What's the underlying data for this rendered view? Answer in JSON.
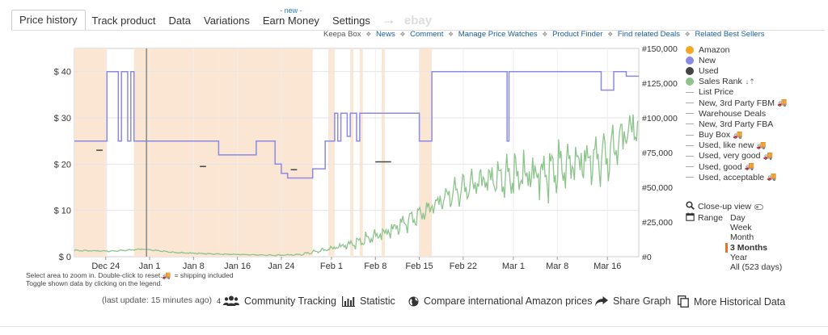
{
  "tabs": [
    {
      "label": "Price history",
      "active": true
    },
    {
      "label": "Track product"
    },
    {
      "label": "Data"
    },
    {
      "label": "Variations"
    },
    {
      "label": "Earn Money",
      "badge": "- new -"
    },
    {
      "label": "Settings"
    }
  ],
  "tab_arrow": "→",
  "tab_ebay": "ebay",
  "links": {
    "lead": "Keepa Box",
    "items": [
      "News",
      "Comment",
      "Manage Price Watches",
      "Product Finder",
      "Find related Deals",
      "Related Best Sellers"
    ],
    "separator": "❖"
  },
  "legend": {
    "items": [
      {
        "label": "Amazon",
        "color": "#f5a623",
        "type": "dot"
      },
      {
        "label": "New",
        "color": "#8a8ae6",
        "type": "dot"
      },
      {
        "label": "Used",
        "color": "#444444",
        "type": "dot"
      },
      {
        "label": "Sales Rank",
        "color": "#8cc48c",
        "type": "dot",
        "sort_icon": "↓⇡"
      },
      {
        "label": "List Price",
        "type": "line"
      },
      {
        "label": "New, 3rd Party FBM",
        "type": "line",
        "truck": true
      },
      {
        "label": "Warehouse Deals",
        "type": "line"
      },
      {
        "label": "New, 3rd Party FBA",
        "type": "line"
      },
      {
        "label": "Buy Box",
        "type": "line",
        "truck": true
      },
      {
        "label": "Used, like new",
        "type": "line",
        "truck": true
      },
      {
        "label": "Used, very good",
        "type": "line",
        "truck": true
      },
      {
        "label": "Used, good",
        "type": "line",
        "truck": true
      },
      {
        "label": "Used, acceptable",
        "type": "line",
        "truck": true
      }
    ],
    "truck_icon": "🚚"
  },
  "closeup": {
    "label": "Close-up view"
  },
  "range": {
    "label": "Range",
    "options": [
      "Day",
      "Week",
      "Month",
      "3 Months",
      "Year",
      "All (523 days)"
    ],
    "selected": "3 Months"
  },
  "help": {
    "line1": "Select area to zoom in. Double-click to reset.",
    "line2": "Toggle shown data by clicking on the legend.",
    "shipping": "= shipping included"
  },
  "bottom": {
    "last_update": "(last update: 15 minutes ago)",
    "community_count": "4",
    "community": "Community Tracking",
    "statistic": "Statistic",
    "compare": "Compare international Amazon prices",
    "share": "Share Graph",
    "more": "More Historical Data"
  },
  "chart_data": {
    "type": "line",
    "x_ticks": [
      "Dec 24",
      "Jan 1",
      "Jan 8",
      "Jan 16",
      "Jan 24",
      "Feb 1",
      "Feb 8",
      "Feb 15",
      "Feb 22",
      "Mar 1",
      "Mar 8",
      "Mar 16"
    ],
    "x_range_days": [
      0,
      90
    ],
    "x_tick_days": [
      5,
      12,
      19,
      26,
      33,
      41,
      48,
      55,
      62,
      70,
      77,
      85
    ],
    "y_left": {
      "ticks": [
        "$ 0",
        "$ 10",
        "$ 20",
        "$ 30",
        "$ 40"
      ],
      "tick_values": [
        0,
        10,
        20,
        30,
        40
      ],
      "range": [
        0,
        45
      ]
    },
    "y_right": {
      "ticks": [
        "#0",
        "#25,000",
        "#50,000",
        "#75,000",
        "#100,000",
        "#125,000",
        "#150,000"
      ],
      "tick_values": [
        0,
        25000,
        50000,
        75000,
        100000,
        125000,
        150000
      ],
      "range": [
        0,
        150000
      ]
    },
    "series": [
      {
        "name": "New",
        "color": "#8a8ae6",
        "step": true,
        "points": [
          [
            0,
            25
          ],
          [
            5.2,
            25
          ],
          [
            5.2,
            40
          ],
          [
            7,
            40
          ],
          [
            7,
            25
          ],
          [
            7.5,
            25
          ],
          [
            7.5,
            40
          ],
          [
            8.5,
            40
          ],
          [
            8.5,
            25
          ],
          [
            9,
            25
          ],
          [
            9,
            40
          ],
          [
            9.5,
            40
          ],
          [
            9.5,
            25
          ],
          [
            23,
            25
          ],
          [
            23,
            22
          ],
          [
            29,
            22
          ],
          [
            29,
            25
          ],
          [
            32,
            25
          ],
          [
            32,
            20
          ],
          [
            33,
            20
          ],
          [
            33,
            18
          ],
          [
            34,
            18
          ],
          [
            34,
            17
          ],
          [
            38,
            17
          ],
          [
            38,
            19
          ],
          [
            40,
            19
          ],
          [
            40,
            25
          ],
          [
            41.5,
            25
          ],
          [
            41.5,
            31
          ],
          [
            42,
            31
          ],
          [
            42,
            25
          ],
          [
            42.5,
            25
          ],
          [
            42.5,
            31
          ],
          [
            43.5,
            31
          ],
          [
            43.5,
            26
          ],
          [
            44,
            26
          ],
          [
            44,
            31
          ],
          [
            45,
            31
          ],
          [
            45,
            25
          ],
          [
            45.5,
            25
          ],
          [
            45.5,
            31
          ],
          [
            55,
            31
          ],
          [
            55,
            25
          ],
          [
            57,
            25
          ],
          [
            57,
            40
          ],
          [
            69,
            40
          ],
          [
            69,
            25
          ],
          [
            69.3,
            25
          ],
          [
            69.3,
            40
          ],
          [
            84,
            40
          ],
          [
            84,
            36
          ],
          [
            86,
            36
          ],
          [
            86,
            40
          ],
          [
            88,
            40
          ],
          [
            88,
            39
          ],
          [
            90,
            39
          ]
        ]
      },
      {
        "name": "Used",
        "color": "#444444",
        "segments": [
          [
            [
              3.5,
              23
            ],
            [
              4.5,
              23
            ]
          ],
          [
            [
              20,
              19.5
            ],
            [
              21,
              19.5
            ]
          ],
          [
            [
              34.5,
              18.8
            ],
            [
              35.5,
              18.8
            ]
          ],
          [
            [
              48,
              20.5
            ],
            [
              50.5,
              20.5
            ]
          ]
        ]
      },
      {
        "name": "Sales Rank",
        "color": "#8cc48c",
        "axis": "right",
        "trend": [
          [
            0,
            4500
          ],
          [
            6,
            4000
          ],
          [
            11,
            5500
          ],
          [
            16,
            3000
          ],
          [
            22,
            2000
          ],
          [
            27,
            1500
          ],
          [
            32,
            1000
          ],
          [
            36,
            1500
          ],
          [
            40,
            5000
          ],
          [
            45,
            10000
          ],
          [
            50,
            18000
          ],
          [
            55,
            30000
          ],
          [
            60,
            45000
          ],
          [
            65,
            55000
          ],
          [
            70,
            58000
          ],
          [
            75,
            60000
          ],
          [
            80,
            68000
          ],
          [
            85,
            72000
          ],
          [
            88,
            90000
          ],
          [
            90,
            95000
          ]
        ],
        "noise_amplitude": [
          [
            0,
            600
          ],
          [
            30,
            300
          ],
          [
            40,
            1500
          ],
          [
            45,
            4000
          ],
          [
            55,
            8000
          ],
          [
            65,
            14000
          ],
          [
            75,
            18000
          ],
          [
            90,
            22000
          ]
        ],
        "noise_period_days": 1.4
      }
    ],
    "highlight_bands_days": [
      [
        0,
        5.2
      ],
      [
        9.5,
        23
      ],
      [
        23,
        38
      ],
      [
        40.5,
        41.5
      ],
      [
        44,
        44.5
      ],
      [
        45.5,
        46
      ],
      [
        49,
        49.5
      ],
      [
        55,
        57
      ]
    ],
    "band_color": "#fbe6d4",
    "cursor_day": 11.5,
    "grid": true
  }
}
